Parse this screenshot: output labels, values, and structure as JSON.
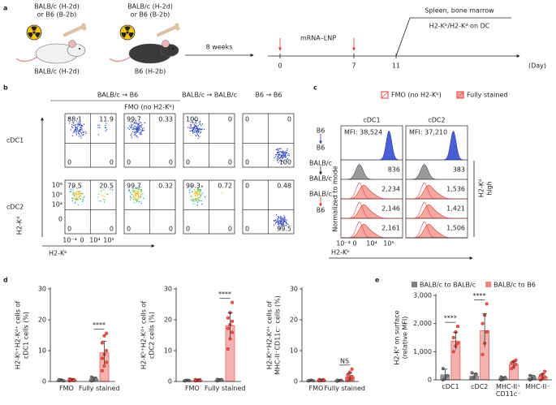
{
  "panel_a": {
    "label": "a",
    "donor_1": [
      "BALB/c (H-2d)",
      "or B6 (B-2b)"
    ],
    "recipient_1": "BALB/c (H-2d)",
    "donor_2": [
      "BALB/c (H-2d)",
      "or B6 (B-2b)"
    ],
    "recipient_2": "B6 (H-2b)",
    "interval": "8 weeks",
    "treatment": "mRNA–LNP",
    "days": [
      0,
      7,
      11
    ],
    "day_unit": "(Day)",
    "readout": [
      "Spleen, bone marrow",
      "H2-Kᵇ/H2-Kᵈ on DC"
    ]
  },
  "panel_b": {
    "label": "b",
    "header": "BALB/c → B6",
    "subheader": "FMO (no H2-Kᵇ)",
    "columns": [
      "BALB/c → BALB/c",
      "B6 → B6"
    ],
    "rows": [
      "cDC1",
      "cDC2"
    ],
    "y_label": "H2-Kᵈ",
    "x_label": "H2-Kᵇ",
    "y_ticks": [
      "10⁶",
      "10⁵",
      "10⁴",
      "0"
    ],
    "x_ticks": [
      "10⁻⁴",
      "0",
      "10⁴",
      "10⁵"
    ],
    "quadrants": [
      [
        [
          "88.1",
          "11.9",
          "0",
          "0"
        ],
        [
          "99.7",
          "0.33",
          "0",
          "0"
        ],
        [
          "100",
          "0",
          "0",
          "0"
        ],
        [
          "0",
          "0",
          "0",
          "100"
        ]
      ],
      [
        [
          "79.5",
          "20.5",
          "0",
          "0"
        ],
        [
          "99.7",
          "0.32",
          "0",
          "0"
        ],
        [
          "99.3",
          "0.72",
          "0",
          "0"
        ],
        [
          "0",
          "0.48",
          "0",
          "99.5"
        ]
      ]
    ]
  },
  "panel_c": {
    "label": "c",
    "legend": [
      "FMO (no H2-Kᵇ)",
      "Fully stained"
    ],
    "columns": [
      "cDC1",
      "cDC2"
    ],
    "row_labels": [
      [
        "B6",
        "B6"
      ],
      [
        "BALB/c",
        "BALB/c"
      ],
      [
        "BALB/c",
        "B6"
      ]
    ],
    "values": [
      [
        "MFI: 38,524",
        "MFI: 37,210"
      ],
      [
        "836",
        "383"
      ],
      [
        "2,234",
        "1,536"
      ],
      [
        "2,146",
        "1,421"
      ],
      [
        "2,161",
        "1,506"
      ]
    ],
    "bracket_label": [
      "H2-Kᵈ",
      "high"
    ],
    "y_label": "Normalized to mode",
    "x_label": "H2-Kᵇ",
    "x_ticks": [
      "10⁻⁴",
      "0",
      "10⁴",
      "10⁵"
    ]
  },
  "panel_d": {
    "label": "d"
  },
  "panel_e": {
    "label": "e"
  },
  "chart_data": [
    {
      "type": "bar",
      "y_label": [
        "H2-Kᵇ⁺H2-Kᵈ⁺ cells of",
        "cDC1 cells (%)"
      ],
      "categories": [
        "FMO",
        "Fully stained"
      ],
      "ylim": [
        0,
        30
      ],
      "yticks": [
        0,
        10,
        20,
        30
      ],
      "significance": [
        null,
        "****"
      ],
      "series": [
        {
          "color": "#7f7f7f",
          "values": [
            0.4,
            0.8
          ],
          "errors": [
            0.2,
            0.6
          ],
          "points": [
            [
              0.3,
              0.5,
              0.2,
              0.6
            ],
            [
              0.2,
              0.6,
              1.0,
              1.4
            ]
          ]
        },
        {
          "color": "#e8534f",
          "values": [
            0.5,
            9.3
          ],
          "errors": [
            0.3,
            3.8
          ],
          "points": [
            [
              0.2,
              0.4,
              0.6,
              0.8,
              0.5,
              0.3,
              0.7,
              0.6,
              0.4
            ],
            [
              3.5,
              5.0,
              6.2,
              7.5,
              8.8,
              10.0,
              12.5,
              14.8,
              15.6
            ]
          ]
        }
      ]
    },
    {
      "type": "bar",
      "y_label": [
        "H2-Kᵇ⁺H2-Kᵈ⁺ cells of",
        "cDC2 cells (%)"
      ],
      "categories": [
        "FMO",
        "Fully stained"
      ],
      "ylim": [
        0,
        30
      ],
      "yticks": [
        0,
        10,
        20,
        30
      ],
      "significance": [
        null,
        "****"
      ],
      "series": [
        {
          "color": "#7f7f7f",
          "values": [
            0.3,
            0.5
          ],
          "errors": [
            0.2,
            0.3
          ],
          "points": [
            [
              0.2,
              0.4,
              0.3,
              0.3
            ],
            [
              0.2,
              0.5,
              0.6,
              0.7
            ]
          ]
        },
        {
          "color": "#e8534f",
          "values": [
            0.4,
            18.1
          ],
          "errors": [
            0.3,
            4.2
          ],
          "points": [
            [
              0.2,
              0.3,
              0.5,
              0.6,
              0.4,
              0.3,
              0.5,
              0.4,
              0.6
            ],
            [
              10.5,
              13.8,
              15.9,
              17.2,
              18.4,
              19.5,
              20.6,
              22.3,
              25.6
            ]
          ]
        }
      ]
    },
    {
      "type": "bar",
      "y_label": [
        "H2-Kᵇ⁺H2-Kᵈ⁺ cells of",
        "MHC-II⁻CD11c⁻ cells (%)"
      ],
      "categories": [
        "FMO",
        "Fully stained"
      ],
      "ylim": [
        0,
        30
      ],
      "yticks": [
        0,
        10,
        20,
        30
      ],
      "significance": [
        null,
        "NS"
      ],
      "series": [
        {
          "color": "#7f7f7f",
          "values": [
            0.3,
            0.3
          ],
          "errors": [
            0.2,
            0.2
          ],
          "points": [
            [
              0.2,
              0.4,
              0.3,
              0.3
            ],
            [
              0.1,
              0.3,
              0.4,
              0.4
            ]
          ]
        },
        {
          "color": "#e8534f",
          "values": [
            0.4,
            1.5
          ],
          "errors": [
            0.3,
            1.2
          ],
          "points": [
            [
              0.2,
              0.3,
              0.5,
              0.6,
              0.4,
              0.3,
              0.5,
              0.4,
              0.6
            ],
            [
              0.3,
              0.5,
              0.8,
              1.0,
              1.2,
              1.6,
              2.2,
              3.0,
              4.0
            ]
          ]
        }
      ]
    },
    {
      "type": "bar",
      "y_label": [
        "H2-Kᵈ on surface",
        "(relative MFI)"
      ],
      "categories": [
        "cDC1",
        "cDC2",
        "MHC-II⁺\nCD11c⁻",
        "MHC-II⁻"
      ],
      "ylim": [
        0,
        3000
      ],
      "yticks": [
        0,
        {
          "value": 1000,
          "label": "1,000"
        },
        {
          "value": 2000,
          "label": "2,000"
        },
        {
          "value": 3000,
          "label": "3,000"
        }
      ],
      "significance": [
        "****",
        "****",
        null,
        null
      ],
      "series": [
        {
          "name": "BALB/c to BALB/c",
          "color": "#7f7f7f",
          "values": [
            180,
            130,
            50,
            70
          ],
          "errors": [
            200,
            100,
            60,
            90
          ],
          "points": [
            [
              0,
              50,
              150,
              400
            ],
            [
              50,
              100,
              200,
              250
            ],
            [
              0,
              20,
              80,
              100
            ],
            [
              0,
              50,
              100,
              150
            ]
          ]
        },
        {
          "name": "BALB/c to B6",
          "color": "#e8534f",
          "values": [
            1380,
            1750,
            540,
            110
          ],
          "errors": [
            300,
            600,
            120,
            100
          ],
          "points": [
            [
              1000,
              1200,
              1300,
              1500,
              1700,
              1900
            ],
            [
              900,
              1300,
              1700,
              2000,
              2300,
              2700
            ],
            [
              400,
              450,
              550,
              600,
              650,
              700
            ],
            [
              0,
              50,
              100,
              150,
              200,
              300
            ]
          ]
        }
      ]
    }
  ]
}
